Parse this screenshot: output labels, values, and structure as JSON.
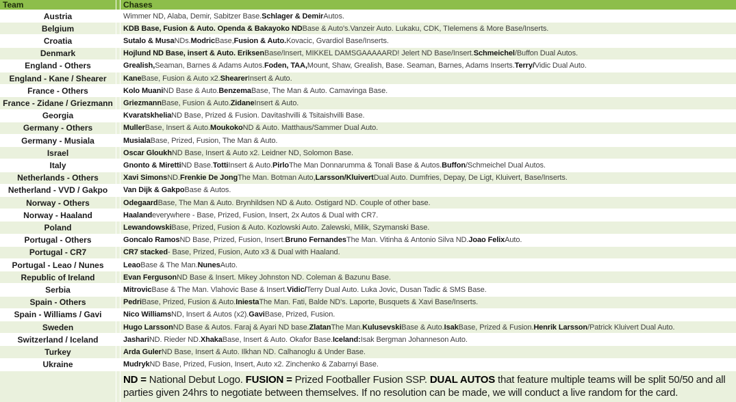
{
  "colors": {
    "header_green": "#8dbe4b",
    "stripe_green": "#eaf1dd",
    "white": "#ffffff",
    "bold_text": "#141414",
    "regular_text": "#3e3e3e"
  },
  "header": {
    "team": "Team",
    "chases": "Chases"
  },
  "rows": [
    {
      "team": "Austria",
      "chases": [
        {
          "t": "Wimmer ND, Alaba, Demir, Sabitzer Base. ",
          "b": 0
        },
        {
          "t": "Schlager & Demir",
          "b": 1
        },
        {
          "t": " Autos.",
          "b": 0
        }
      ]
    },
    {
      "team": "Belgium",
      "chases": [
        {
          "t": "KDB Base, Fusion & Auto. Openda & Bakayoko ND",
          "b": 1
        },
        {
          "t": " Base & Auto's.Vanzeir Auto. Lukaku, CDK, TIelemens & More Base/Inserts.",
          "b": 0
        }
      ]
    },
    {
      "team": "Croatia",
      "chases": [
        {
          "t": "Sutalo & Musa",
          "b": 1
        },
        {
          "t": " NDs. ",
          "b": 0
        },
        {
          "t": "Modric",
          "b": 1
        },
        {
          "t": " Base, ",
          "b": 0
        },
        {
          "t": "Fusion & Auto.",
          "b": 1
        },
        {
          "t": " Kovacic, Gvardiol Base/Inserts.",
          "b": 0
        }
      ]
    },
    {
      "team": "Denmark",
      "chases": [
        {
          "t": "Hojlund ND Base, insert & Auto. Eriksen",
          "b": 1
        },
        {
          "t": " Base/Insert, MIKKEL DAMSGAAAAARD! Jelert ND Base/Insert. ",
          "b": 0
        },
        {
          "t": "Schmeichel",
          "b": 1
        },
        {
          "t": "/Buffon Dual Autos.",
          "b": 0
        }
      ]
    },
    {
      "team": "England - Others",
      "chases": [
        {
          "t": "Grealish,",
          "b": 1
        },
        {
          "t": " Seaman, Barnes & Adams Autos. ",
          "b": 0
        },
        {
          "t": "Foden, TAA,",
          "b": 1
        },
        {
          "t": " Mount, Shaw, Grealish, Base. Seaman, Barnes, Adams Inserts. ",
          "b": 0
        },
        {
          "t": "Terry/",
          "b": 1
        },
        {
          "t": "Vidic Dual Auto.",
          "b": 0
        }
      ]
    },
    {
      "team": "England - Kane / Shearer",
      "chases": [
        {
          "t": "Kane",
          "b": 1
        },
        {
          "t": " Base, Fusion & Auto x2. ",
          "b": 0
        },
        {
          "t": "Shearer",
          "b": 1
        },
        {
          "t": " Insert & Auto.",
          "b": 0
        }
      ]
    },
    {
      "team": "France - Others",
      "chases": [
        {
          "t": "Kolo Muani",
          "b": 1
        },
        {
          "t": " ND Base & Auto. ",
          "b": 0
        },
        {
          "t": "Benzema",
          "b": 1
        },
        {
          "t": " Base, The Man & Auto. Camavinga Base.",
          "b": 0
        }
      ]
    },
    {
      "team": "France - Zidane / Griezmann",
      "chases": [
        {
          "t": "Griezmann",
          "b": 1
        },
        {
          "t": " Base, Fusion & Auto. ",
          "b": 0
        },
        {
          "t": "Zidane",
          "b": 1
        },
        {
          "t": " Insert & Auto.",
          "b": 0
        }
      ]
    },
    {
      "team": "Georgia",
      "chases": [
        {
          "t": "Kvaratskhelia",
          "b": 1
        },
        {
          "t": " ND Base, Prized & Fusion. Davitashvilli & Tsitaishvilli Base.",
          "b": 0
        }
      ]
    },
    {
      "team": "Germany - Others",
      "chases": [
        {
          "t": "Muller",
          "b": 1
        },
        {
          "t": " Base, Insert & Auto. ",
          "b": 0
        },
        {
          "t": "Moukoko",
          "b": 1
        },
        {
          "t": " ND & Auto. Matthaus/Sammer Dual Auto.",
          "b": 0
        }
      ]
    },
    {
      "team": "Germany - Musiala",
      "chases": [
        {
          "t": "Musiala",
          "b": 1
        },
        {
          "t": " Base, Prized, Fusion, The Man & Auto.",
          "b": 0
        }
      ]
    },
    {
      "team": "Israel",
      "chases": [
        {
          "t": "Oscar Gloukh",
          "b": 1
        },
        {
          "t": " ND Base, Insert & Auto x2. Leidner ND, Solomon Base.",
          "b": 0
        }
      ]
    },
    {
      "team": "Italy",
      "chases": [
        {
          "t": "Gnonto & Miretti",
          "b": 1
        },
        {
          "t": " ND Base. ",
          "b": 0
        },
        {
          "t": "Totti",
          "b": 1
        },
        {
          "t": " Insert & Auto. ",
          "b": 0
        },
        {
          "t": "Pirlo",
          "b": 1
        },
        {
          "t": " The Man Donnarumma & Tonali Base & Autos. ",
          "b": 0
        },
        {
          "t": "Buffon",
          "b": 1
        },
        {
          "t": "/Schmeichel Dual Autos.",
          "b": 0
        }
      ]
    },
    {
      "team": "Netherlands - Others",
      "chases": [
        {
          "t": "Xavi Simons",
          "b": 1
        },
        {
          "t": " ND. ",
          "b": 0
        },
        {
          "t": "Frenkie De Jong",
          "b": 1
        },
        {
          "t": " The Man. Botman Auto, ",
          "b": 0
        },
        {
          "t": "Larsson/Kluivert",
          "b": 1
        },
        {
          "t": " Dual Auto. Dumfries, Depay, De Ligt, Kluivert, Base/Inserts.",
          "b": 0
        }
      ]
    },
    {
      "team": "Netherland - VVD / Gakpo",
      "chases": [
        {
          "t": "Van Dijk & Gakpo",
          "b": 1
        },
        {
          "t": " Base & Autos.",
          "b": 0
        }
      ]
    },
    {
      "team": "Norway - Others",
      "chases": [
        {
          "t": "Odegaard",
          "b": 1
        },
        {
          "t": " Base, The Man & Auto. Brynhildsen ND & Auto. Ostigard ND. Couple of other base.",
          "b": 0
        }
      ]
    },
    {
      "team": "Norway - Haaland",
      "chases": [
        {
          "t": "Haaland",
          "b": 1
        },
        {
          "t": " everywhere - Base, Prized, Fusion, Insert, 2x Autos & Dual with CR7.",
          "b": 0
        }
      ]
    },
    {
      "team": "Poland",
      "chases": [
        {
          "t": "Lewandowski",
          "b": 1
        },
        {
          "t": " Base, Prized, Fusion & Auto. Kozlowski Auto. Zalewski, Milik, Szymanski Base.",
          "b": 0
        }
      ]
    },
    {
      "team": "Portugal - Others",
      "chases": [
        {
          "t": "Goncalo Ramos",
          "b": 1
        },
        {
          "t": " ND Base, Prized, Fusion, Insert. ",
          "b": 0
        },
        {
          "t": "Bruno Fernandes",
          "b": 1
        },
        {
          "t": " The Man. Vitinha & Antonio Silva ND. ",
          "b": 0
        },
        {
          "t": "Joao Felix",
          "b": 1
        },
        {
          "t": " Auto.",
          "b": 0
        }
      ]
    },
    {
      "team": "Portugal - CR7",
      "chases": [
        {
          "t": "CR7 stacked",
          "b": 1
        },
        {
          "t": " - Base, Prized, Fusion, Auto x3 & Dual with Haaland.",
          "b": 0
        }
      ]
    },
    {
      "team": "Portugal - Leao / Nunes",
      "chases": [
        {
          "t": "Leao",
          "b": 1
        },
        {
          "t": " Base & The Man. ",
          "b": 0
        },
        {
          "t": "Nunes",
          "b": 1
        },
        {
          "t": " Auto.",
          "b": 0
        }
      ]
    },
    {
      "team": "Republic of Ireland",
      "chases": [
        {
          "t": "Evan Ferguson",
          "b": 1
        },
        {
          "t": " ND Base & Insert. Mikey Johnston ND. Coleman & Bazunu Base.",
          "b": 0
        }
      ]
    },
    {
      "team": "Serbia",
      "chases": [
        {
          "t": "Mitrovic",
          "b": 1
        },
        {
          "t": " Base & The Man. Vlahovic Base & Insert. ",
          "b": 0
        },
        {
          "t": "Vidic/",
          "b": 1
        },
        {
          "t": "Terry Dual Auto. Luka Jovic, Dusan Tadic & SMS Base.",
          "b": 0
        }
      ]
    },
    {
      "team": "Spain - Others",
      "chases": [
        {
          "t": "Pedri",
          "b": 1
        },
        {
          "t": " Base, Prized, Fusion & Auto. ",
          "b": 0
        },
        {
          "t": "Iniesta",
          "b": 1
        },
        {
          "t": " The Man. Fati, Balde ND's. Laporte, Busquets & Xavi Base/Inserts.",
          "b": 0
        }
      ]
    },
    {
      "team": "Spain - Williams / Gavi",
      "chases": [
        {
          "t": "Nico Williams",
          "b": 1
        },
        {
          "t": " ND, Insert & Autos (x2). ",
          "b": 0
        },
        {
          "t": "Gavi",
          "b": 1
        },
        {
          "t": " Base, Prized, Fusion.",
          "b": 0
        }
      ]
    },
    {
      "team": "Sweden",
      "chases": [
        {
          "t": "Hugo Larsson",
          "b": 1
        },
        {
          "t": " ND Base & Autos. Faraj & Ayari ND base. ",
          "b": 0
        },
        {
          "t": "Zlatan",
          "b": 1
        },
        {
          "t": " The Man. ",
          "b": 0
        },
        {
          "t": "Kulusevski",
          "b": 1
        },
        {
          "t": " Base & Auto. ",
          "b": 0
        },
        {
          "t": "Isak",
          "b": 1
        },
        {
          "t": " Base, Prized & Fusion. ",
          "b": 0
        },
        {
          "t": "Henrik Larsson",
          "b": 1
        },
        {
          "t": "/Patrick Kluivert Dual Auto.",
          "b": 0
        }
      ]
    },
    {
      "team": "Switzerland / Iceland",
      "chases": [
        {
          "t": "Jashari",
          "b": 1
        },
        {
          "t": " ND. Rieder ND. ",
          "b": 0
        },
        {
          "t": "Xhaka",
          "b": 1
        },
        {
          "t": " Base, Insert & Auto. Okafor Base. ",
          "b": 0
        },
        {
          "t": "Iceland:",
          "b": 1
        },
        {
          "t": " Isak Bergman Johanneson Auto.",
          "b": 0
        }
      ]
    },
    {
      "team": "Turkey",
      "chases": [
        {
          "t": "Arda Guler",
          "b": 1
        },
        {
          "t": " ND Base, Insert & Auto. Ilkhan ND. Calhanoglu & Under Base.",
          "b": 0
        }
      ]
    },
    {
      "team": "Ukraine",
      "chases": [
        {
          "t": "Mudryk",
          "b": 1
        },
        {
          "t": " ND Base, Prized, Fusion, Insert, Auto x2. Zinchenko & Zabarnyi Base.",
          "b": 0
        }
      ]
    }
  ],
  "footer_note": [
    {
      "t": "ND =",
      "b": 1
    },
    {
      "t": " National Debut Logo. ",
      "b": 0
    },
    {
      "t": "FUSION =",
      "b": 1
    },
    {
      "t": " Prized Footballer Fusion SSP. ",
      "b": 0
    },
    {
      "t": "DUAL AUTOS",
      "b": 1
    },
    {
      "t": " that feature multiple teams will be split 50/50 and all parties given 24hrs to negotiate between themselves. If no resolution can be made, we will conduct a live random for the card.",
      "b": 0
    }
  ]
}
